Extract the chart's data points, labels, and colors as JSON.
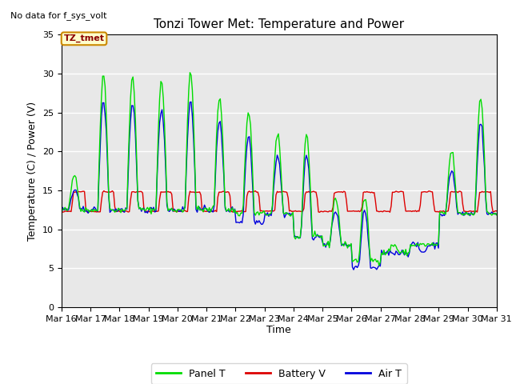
{
  "title": "Tonzi Tower Met: Temperature and Power",
  "ylabel": "Temperature (C) / Power (V)",
  "xlabel": "Time",
  "annotation_top_left": "No data for f_sys_volt",
  "legend_box_label": "TZ_tmet",
  "ylim": [
    0,
    35
  ],
  "xlim_start": 16,
  "xlim_end": 31,
  "xtick_labels": [
    "Mar 16",
    "Mar 17",
    "Mar 18",
    "Mar 19",
    "Mar 20",
    "Mar 21",
    "Mar 22",
    "Mar 23",
    "Mar 24",
    "Mar 25",
    "Mar 26",
    "Mar 27",
    "Mar 28",
    "Mar 29",
    "Mar 30",
    "Mar 31"
  ],
  "colors": {
    "panel_t": "#00dd00",
    "battery_v": "#dd0000",
    "air_t": "#0000dd",
    "background": "#e8e8e8",
    "legend_box_bg": "#ffffcc",
    "legend_box_edge": "#cc8800"
  },
  "legend_labels": [
    "Panel T",
    "Battery V",
    "Air T"
  ],
  "line_width": 1.0,
  "figsize": [
    6.4,
    4.8
  ],
  "dpi": 100
}
